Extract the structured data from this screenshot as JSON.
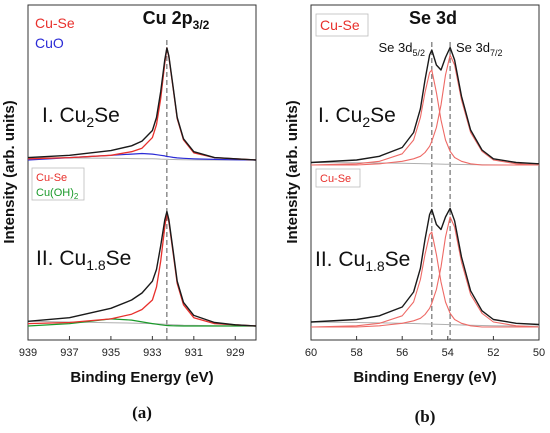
{
  "chart_data": [
    {
      "type": "line",
      "panel_label": "(a)",
      "title": "Cu 2p",
      "title_sub": "3/2",
      "xlabel": "Binding Energy (eV)",
      "ylabel": "Intensity (arb. units)",
      "xlim": [
        939,
        928
      ],
      "x_reversed": true,
      "xticks": [
        "939",
        "937",
        "935",
        "933",
        "931",
        "929"
      ],
      "xtick_values": [
        939,
        937,
        935,
        933,
        931,
        929
      ],
      "reference_lines": [
        932.3
      ],
      "grid": false,
      "legends": [
        {
          "trace": "upper",
          "entries": [
            {
              "label": "Cu-Se",
              "color": "#e8302c"
            },
            {
              "label": "CuO",
              "color": "#2b2bd6"
            }
          ]
        },
        {
          "trace": "lower",
          "entries": [
            {
              "label": "Cu-Se",
              "color": "#e8302c"
            },
            {
              "label": "Cu(OH)",
              "sub": "2",
              "color": "#1a9a2a"
            }
          ]
        }
      ],
      "traces": [
        {
          "label_main": "I. Cu",
          "label_sub": "2",
          "label_end": "Se",
          "x": [
            939,
            937,
            935,
            934,
            933.5,
            933,
            932.8,
            932.6,
            932.4,
            932.3,
            932.2,
            932,
            931.8,
            931.5,
            931,
            930,
            929,
            928
          ],
          "data": [
            0.02,
            0.04,
            0.08,
            0.12,
            0.16,
            0.25,
            0.36,
            0.58,
            0.85,
            0.95,
            0.88,
            0.62,
            0.36,
            0.18,
            0.07,
            0.02,
            0.01,
            0.0
          ],
          "fit_cu_se": [
            0.01,
            0.02,
            0.04,
            0.07,
            0.1,
            0.19,
            0.3,
            0.52,
            0.82,
            0.95,
            0.87,
            0.61,
            0.35,
            0.17,
            0.06,
            0.02,
            0.01,
            0.0
          ],
          "fit_oxide": [
            0.0,
            0.02,
            0.04,
            0.05,
            0.055,
            0.05,
            0.045,
            0.04,
            0.035,
            0.03,
            0.028,
            0.022,
            0.018,
            0.014,
            0.01,
            0.005,
            0.002,
            0.0
          ],
          "background": [
            0.02,
            0.017,
            0.014,
            0.012,
            0.011,
            0.01,
            0.009,
            0.008,
            0.007,
            0.006,
            0.005,
            0.004,
            0.003,
            0.002,
            0.001,
            0.0,
            0.0,
            0.0
          ]
        },
        {
          "label_main": "II. Cu",
          "label_sub": "1.8",
          "label_end": "Se",
          "x": [
            939,
            937,
            935,
            934,
            933.5,
            933,
            932.8,
            932.6,
            932.4,
            932.3,
            932.2,
            932,
            931.8,
            931.5,
            931,
            930,
            929,
            928
          ],
          "data": [
            0.04,
            0.07,
            0.15,
            0.22,
            0.28,
            0.38,
            0.48,
            0.68,
            0.9,
            0.97,
            0.9,
            0.64,
            0.38,
            0.2,
            0.09,
            0.03,
            0.01,
            0.0
          ],
          "fit_cu_se": [
            0.02,
            0.03,
            0.06,
            0.1,
            0.14,
            0.22,
            0.33,
            0.55,
            0.84,
            0.96,
            0.88,
            0.62,
            0.36,
            0.18,
            0.07,
            0.02,
            0.01,
            0.0
          ],
          "fit_oxide": [
            0.0,
            0.02,
            0.06,
            0.05,
            0.035,
            0.02,
            0.015,
            0.01,
            0.006,
            0.004,
            0.003,
            0.002,
            0.001,
            0.0,
            0.0,
            0.0,
            0.0,
            0.0
          ],
          "background": [
            0.04,
            0.034,
            0.028,
            0.025,
            0.022,
            0.02,
            0.019,
            0.017,
            0.015,
            0.014,
            0.013,
            0.011,
            0.009,
            0.007,
            0.005,
            0.002,
            0.001,
            0.0
          ]
        }
      ]
    },
    {
      "type": "line",
      "panel_label": "(b)",
      "title": "Se 3d",
      "xlabel": "Binding Energy (eV)",
      "ylabel": "Intensity (arb. units)",
      "xlim": [
        60,
        50
      ],
      "x_reversed": true,
      "xticks": [
        "60",
        "58",
        "56",
        "54",
        "52",
        "50"
      ],
      "xtick_values": [
        60,
        58,
        56,
        54,
        52,
        50
      ],
      "reference_lines": [
        54.7,
        53.9
      ],
      "peak_labels": [
        {
          "main": "Se 3d",
          "sub": "5/2",
          "x": 54.7
        },
        {
          "main": "Se 3d",
          "sub": "7/2",
          "x": 53.9
        }
      ],
      "grid": false,
      "legends": [
        {
          "trace": "upper",
          "entries": [
            {
              "label": "Cu-Se",
              "color": "#e8302c",
              "boxed": true
            }
          ]
        },
        {
          "trace": "lower",
          "entries": [
            {
              "label": "Cu-Se",
              "color": "#e8302c",
              "boxed": true
            }
          ]
        }
      ],
      "traces": [
        {
          "label_main": "I. Cu",
          "label_sub": "2",
          "label_end": "Se",
          "x": [
            60,
            58,
            57,
            56,
            55.5,
            55.2,
            55,
            54.8,
            54.7,
            54.5,
            54.3,
            54.1,
            53.9,
            53.7,
            53.4,
            53,
            52.5,
            52,
            51,
            50
          ],
          "data": [
            0.02,
            0.04,
            0.07,
            0.14,
            0.26,
            0.45,
            0.68,
            0.88,
            0.92,
            0.8,
            0.76,
            0.86,
            0.94,
            0.84,
            0.55,
            0.28,
            0.12,
            0.05,
            0.02,
            0.01
          ],
          "fit_5_2": [
            0.0,
            0.01,
            0.03,
            0.09,
            0.2,
            0.38,
            0.58,
            0.74,
            0.76,
            0.58,
            0.36,
            0.2,
            0.11,
            0.06,
            0.03,
            0.01,
            0.0,
            0.0,
            0.0,
            0.0
          ],
          "fit_7_2": [
            0.0,
            0.0,
            0.01,
            0.03,
            0.05,
            0.07,
            0.1,
            0.15,
            0.19,
            0.3,
            0.48,
            0.72,
            0.88,
            0.8,
            0.52,
            0.26,
            0.11,
            0.04,
            0.01,
            0.0
          ],
          "background": [
            0.02,
            0.018,
            0.016,
            0.014,
            0.012,
            0.011,
            0.01,
            0.009,
            0.009,
            0.008,
            0.007,
            0.006,
            0.006,
            0.005,
            0.004,
            0.003,
            0.002,
            0.001,
            0.0,
            0.0
          ]
        },
        {
          "label_main": "II. Cu",
          "label_sub": "1.8",
          "label_end": "Se",
          "x": [
            60,
            58,
            57,
            56,
            55.5,
            55.2,
            55,
            54.8,
            54.7,
            54.5,
            54.3,
            54.1,
            53.9,
            53.7,
            53.4,
            53,
            52.5,
            52,
            51,
            50
          ],
          "data": [
            0.04,
            0.06,
            0.09,
            0.16,
            0.28,
            0.47,
            0.7,
            0.9,
            0.94,
            0.82,
            0.78,
            0.88,
            0.95,
            0.85,
            0.56,
            0.29,
            0.13,
            0.06,
            0.03,
            0.02
          ],
          "fit_5_2": [
            0.0,
            0.01,
            0.03,
            0.09,
            0.2,
            0.38,
            0.58,
            0.74,
            0.76,
            0.58,
            0.36,
            0.2,
            0.11,
            0.06,
            0.03,
            0.01,
            0.0,
            0.0,
            0.0,
            0.0
          ],
          "fit_7_2": [
            0.0,
            0.0,
            0.01,
            0.03,
            0.05,
            0.07,
            0.1,
            0.15,
            0.19,
            0.3,
            0.48,
            0.72,
            0.88,
            0.8,
            0.52,
            0.26,
            0.11,
            0.04,
            0.01,
            0.0
          ],
          "background": [
            0.04,
            0.036,
            0.033,
            0.03,
            0.028,
            0.026,
            0.025,
            0.024,
            0.023,
            0.022,
            0.021,
            0.02,
            0.019,
            0.018,
            0.016,
            0.014,
            0.012,
            0.01,
            0.008,
            0.006
          ]
        }
      ]
    }
  ]
}
